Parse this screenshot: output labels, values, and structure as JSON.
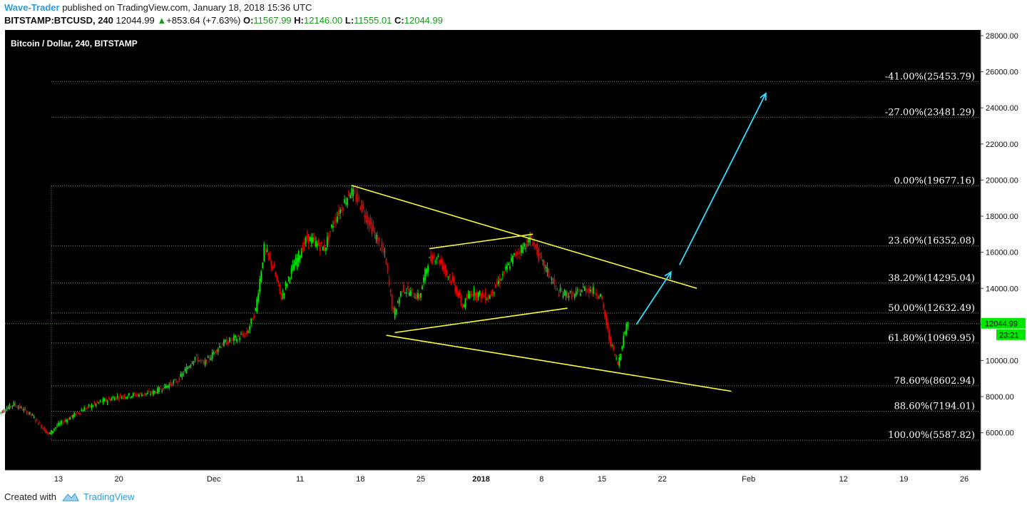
{
  "header": {
    "author": "Wave-Trader",
    "published": "published on TradingView.com, January 18, 2018 15:36 UTC",
    "symbol": "BITSTAMP:BTCUSD, 240",
    "last": "12044.99",
    "change": "+853.64 (+7.63%)",
    "o_label": "O:",
    "o_value": "11567.99",
    "h_label": "H:",
    "h_value": "12146.00",
    "l_label": "L:",
    "l_value": "11555.01",
    "c_label": "C:",
    "c_value": "12044.99"
  },
  "footer": {
    "created_with": "Created with",
    "brand": "TradingView"
  },
  "colors": {
    "background": "#000000",
    "up": "#00e600",
    "down": "#e60000",
    "trendline": "#ffff33",
    "arrow": "#33e0ff",
    "grid": "#8a8a8a",
    "last_price": "#00e600"
  },
  "chart_data": {
    "type": "candlestick",
    "title": "Bitcoin / Dollar, 240, BITSTAMP",
    "ylim": [
      4500,
      28600
    ],
    "y_ticks": [
      "28000.00",
      "26000.00",
      "24000.00",
      "22000.00",
      "20000.00",
      "18000.00",
      "16000.00",
      "14000.00",
      "12000.00",
      "10000.00",
      "8000.00",
      "6000.00"
    ],
    "x_ticks": [
      "13",
      "20",
      "Dec",
      "11",
      "18",
      "25",
      "2018",
      "8",
      "15",
      "22",
      "Feb",
      "12",
      "19",
      "26"
    ],
    "last_price_label": "12044.99",
    "countdown_label": "23:21",
    "fib_levels": [
      {
        "label": "-41.00%(25453.79)",
        "price": 25453.79
      },
      {
        "label": "-27.00%(23481.29)",
        "price": 23481.29
      },
      {
        "label": "0.00%(19677.16)",
        "price": 19677.16
      },
      {
        "label": "23.60%(16352.08)",
        "price": 16352.08
      },
      {
        "label": "38.20%(14295.04)",
        "price": 14295.04
      },
      {
        "label": "50.00%(12632.49)",
        "price": 12632.49
      },
      {
        "label": "61.80%(10969.95)",
        "price": 10969.95
      },
      {
        "label": "78.60%(8602.94)",
        "price": 8602.94
      },
      {
        "label": "88.60%(7194.01)",
        "price": 7194.01
      },
      {
        "label": "100.00%(5587.82)",
        "price": 5587.82
      }
    ],
    "price_path": [
      {
        "d": "2017-11-06",
        "p": 7000
      },
      {
        "d": "2017-11-08",
        "p": 7600
      },
      {
        "d": "2017-11-10",
        "p": 7000
      },
      {
        "d": "2017-11-12",
        "p": 5900
      },
      {
        "d": "2017-11-13",
        "p": 6400
      },
      {
        "d": "2017-11-16",
        "p": 7300
      },
      {
        "d": "2017-11-18",
        "p": 7700
      },
      {
        "d": "2017-11-20",
        "p": 8000
      },
      {
        "d": "2017-11-24",
        "p": 8200
      },
      {
        "d": "2017-11-27",
        "p": 8900
      },
      {
        "d": "2017-11-29",
        "p": 10200
      },
      {
        "d": "2017-11-30",
        "p": 9800
      },
      {
        "d": "2017-12-02",
        "p": 10900
      },
      {
        "d": "2017-12-05",
        "p": 11500
      },
      {
        "d": "2017-12-06",
        "p": 12800
      },
      {
        "d": "2017-12-07",
        "p": 16200
      },
      {
        "d": "2017-12-08",
        "p": 15200
      },
      {
        "d": "2017-12-09",
        "p": 13500
      },
      {
        "d": "2017-12-10",
        "p": 14800
      },
      {
        "d": "2017-12-12",
        "p": 16800
      },
      {
        "d": "2017-12-14",
        "p": 16200
      },
      {
        "d": "2017-12-15",
        "p": 17600
      },
      {
        "d": "2017-12-17",
        "p": 19400
      },
      {
        "d": "2017-12-18",
        "p": 18800
      },
      {
        "d": "2017-12-20",
        "p": 16800
      },
      {
        "d": "2017-12-21",
        "p": 15800
      },
      {
        "d": "2017-12-22",
        "p": 12500
      },
      {
        "d": "2017-12-23",
        "p": 14000
      },
      {
        "d": "2017-12-25",
        "p": 13500
      },
      {
        "d": "2017-12-26",
        "p": 15500
      },
      {
        "d": "2017-12-27",
        "p": 15800
      },
      {
        "d": "2017-12-29",
        "p": 14200
      },
      {
        "d": "2017-12-30",
        "p": 13000
      },
      {
        "d": "2017-12-31",
        "p": 13800
      },
      {
        "d": "2018-01-02",
        "p": 13500
      },
      {
        "d": "2018-01-04",
        "p": 15000
      },
      {
        "d": "2018-01-05",
        "p": 15800
      },
      {
        "d": "2018-01-07",
        "p": 16800
      },
      {
        "d": "2018-01-08",
        "p": 15600
      },
      {
        "d": "2018-01-09",
        "p": 14800
      },
      {
        "d": "2018-01-10",
        "p": 13800
      },
      {
        "d": "2018-01-12",
        "p": 13600
      },
      {
        "d": "2018-01-13",
        "p": 14000
      },
      {
        "d": "2018-01-14",
        "p": 13900
      },
      {
        "d": "2018-01-15",
        "p": 13600
      },
      {
        "d": "2018-01-16",
        "p": 11200
      },
      {
        "d": "2018-01-17",
        "p": 9800
      },
      {
        "d": "2018-01-18",
        "p": 12044.99
      }
    ],
    "trendlines": [
      {
        "name": "upper-channel",
        "from": {
          "d": "2017-12-17",
          "p": 19700
        },
        "to": {
          "d": "2018-01-26",
          "p": 14000
        }
      },
      {
        "name": "lower-channel",
        "from": {
          "d": "2017-12-21",
          "p": 11400
        },
        "to": {
          "d": "2018-01-30",
          "p": 8300
        }
      },
      {
        "name": "triangle-top",
        "from": {
          "d": "2017-12-26",
          "p": 16200
        },
        "to": {
          "d": "2018-01-07",
          "p": 17000
        }
      },
      {
        "name": "triangle-bottom",
        "from": {
          "d": "2017-12-22",
          "p": 11550
        },
        "to": {
          "d": "2018-01-11",
          "p": 12900
        }
      }
    ],
    "projection_arrows": [
      {
        "from": {
          "d": "2018-01-19",
          "p": 12000
        },
        "to": {
          "d": "2018-01-23",
          "p": 14900
        }
      },
      {
        "from": {
          "d": "2018-01-24",
          "p": 15300
        },
        "to": {
          "d": "2018-02-03",
          "p": 24800
        }
      }
    ]
  }
}
